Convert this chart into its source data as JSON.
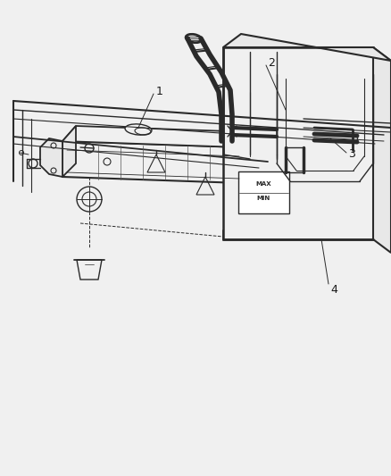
{
  "background_color": "#f0f0f0",
  "line_color": "#2a2a2a",
  "lw": 1.0,
  "label_fontsize": 9,
  "label_color": "#1a1a1a",
  "fig_w": 4.38,
  "fig_h": 5.33,
  "dpi": 100
}
